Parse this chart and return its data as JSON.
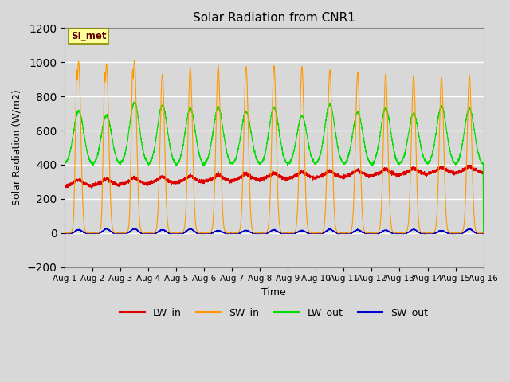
{
  "title": "Solar Radiation from CNR1",
  "xlabel": "Time",
  "ylabel": "Solar Radiation (W/m2)",
  "ylim": [
    -200,
    1200
  ],
  "yticks": [
    -200,
    0,
    200,
    400,
    600,
    800,
    1000,
    1200
  ],
  "plot_bg_color": "#d8d8d8",
  "fig_bg_color": "#d8d8d8",
  "grid_color": "#c0c0c0",
  "annotation_text": "SI_met",
  "annotation_bg": "#ffff99",
  "annotation_border": "#888800",
  "annotation_text_color": "#660000",
  "line_colors": {
    "LW_in": "#dd0000",
    "SW_in": "#ff9900",
    "LW_out": "#00dd00",
    "SW_out": "#0000cc"
  },
  "legend_labels": [
    "LW_in",
    "SW_in",
    "LW_out",
    "SW_out"
  ],
  "n_days": 15,
  "samples_per_day": 288
}
